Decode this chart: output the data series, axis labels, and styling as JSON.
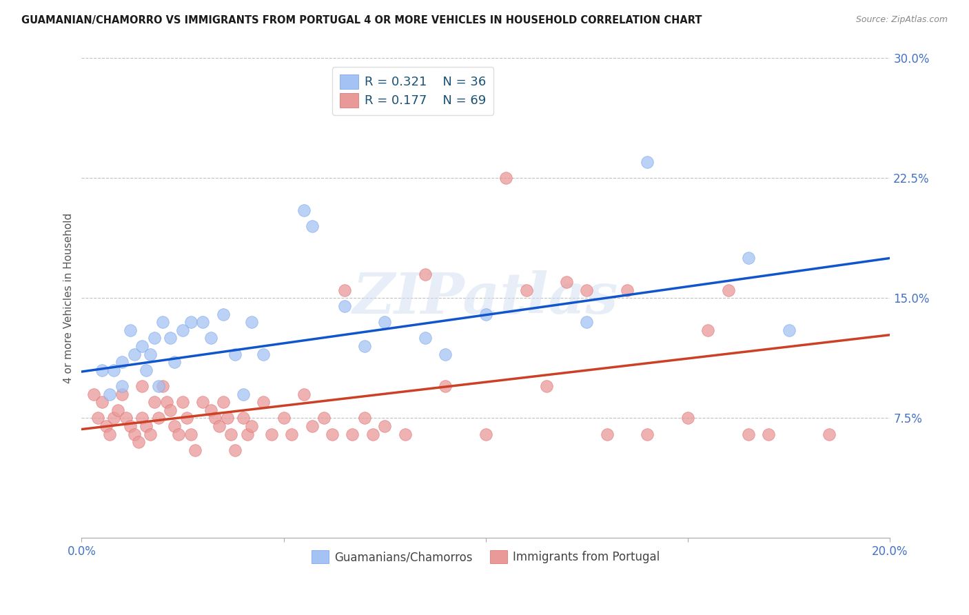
{
  "title": "GUAMANIAN/CHAMORRO VS IMMIGRANTS FROM PORTUGAL 4 OR MORE VEHICLES IN HOUSEHOLD CORRELATION CHART",
  "source": "Source: ZipAtlas.com",
  "ylabel": "4 or more Vehicles in Household",
  "xlim": [
    0.0,
    0.2
  ],
  "ylim": [
    0.0,
    0.3
  ],
  "xticks": [
    0.0,
    0.05,
    0.1,
    0.15,
    0.2
  ],
  "xtick_labels": [
    "0.0%",
    "",
    "",
    "",
    "20.0%"
  ],
  "yticks": [
    0.0,
    0.075,
    0.15,
    0.225,
    0.3
  ],
  "ytick_labels": [
    "",
    "7.5%",
    "15.0%",
    "22.5%",
    "30.0%"
  ],
  "blue_color": "#a4c2f4",
  "pink_color": "#ea9999",
  "blue_edge_color": "#6d9eeb",
  "pink_edge_color": "#e06666",
  "blue_line_color": "#1155cc",
  "pink_line_color": "#cc4125",
  "tick_color": "#4472c4",
  "legend_label1": "Guamanians/Chamorros",
  "legend_label2": "Immigrants from Portugal",
  "watermark": "ZIPatlas",
  "blue_scatter_x": [
    0.005,
    0.007,
    0.008,
    0.01,
    0.01,
    0.012,
    0.013,
    0.015,
    0.016,
    0.017,
    0.018,
    0.019,
    0.02,
    0.022,
    0.023,
    0.025,
    0.027,
    0.03,
    0.032,
    0.035,
    0.038,
    0.04,
    0.042,
    0.045,
    0.055,
    0.057,
    0.065,
    0.07,
    0.075,
    0.085,
    0.09,
    0.1,
    0.125,
    0.14,
    0.165,
    0.175
  ],
  "blue_scatter_y": [
    0.105,
    0.09,
    0.105,
    0.11,
    0.095,
    0.13,
    0.115,
    0.12,
    0.105,
    0.115,
    0.125,
    0.095,
    0.135,
    0.125,
    0.11,
    0.13,
    0.135,
    0.135,
    0.125,
    0.14,
    0.115,
    0.09,
    0.135,
    0.115,
    0.205,
    0.195,
    0.145,
    0.12,
    0.135,
    0.125,
    0.115,
    0.14,
    0.135,
    0.235,
    0.175,
    0.13
  ],
  "pink_scatter_x": [
    0.003,
    0.004,
    0.005,
    0.006,
    0.007,
    0.008,
    0.009,
    0.01,
    0.011,
    0.012,
    0.013,
    0.014,
    0.015,
    0.015,
    0.016,
    0.017,
    0.018,
    0.019,
    0.02,
    0.021,
    0.022,
    0.023,
    0.024,
    0.025,
    0.026,
    0.027,
    0.028,
    0.03,
    0.032,
    0.033,
    0.034,
    0.035,
    0.036,
    0.037,
    0.038,
    0.04,
    0.041,
    0.042,
    0.045,
    0.047,
    0.05,
    0.052,
    0.055,
    0.057,
    0.06,
    0.062,
    0.065,
    0.067,
    0.07,
    0.072,
    0.075,
    0.08,
    0.085,
    0.09,
    0.1,
    0.105,
    0.11,
    0.115,
    0.12,
    0.125,
    0.13,
    0.135,
    0.14,
    0.15,
    0.155,
    0.16,
    0.165,
    0.17,
    0.185
  ],
  "pink_scatter_y": [
    0.09,
    0.075,
    0.085,
    0.07,
    0.065,
    0.075,
    0.08,
    0.09,
    0.075,
    0.07,
    0.065,
    0.06,
    0.095,
    0.075,
    0.07,
    0.065,
    0.085,
    0.075,
    0.095,
    0.085,
    0.08,
    0.07,
    0.065,
    0.085,
    0.075,
    0.065,
    0.055,
    0.085,
    0.08,
    0.075,
    0.07,
    0.085,
    0.075,
    0.065,
    0.055,
    0.075,
    0.065,
    0.07,
    0.085,
    0.065,
    0.075,
    0.065,
    0.09,
    0.07,
    0.075,
    0.065,
    0.155,
    0.065,
    0.075,
    0.065,
    0.07,
    0.065,
    0.165,
    0.095,
    0.065,
    0.225,
    0.155,
    0.095,
    0.16,
    0.155,
    0.065,
    0.155,
    0.065,
    0.075,
    0.13,
    0.155,
    0.065,
    0.065,
    0.065
  ],
  "blue_trend_x0": 0.0,
  "blue_trend_y0": 0.104,
  "blue_trend_x1": 0.2,
  "blue_trend_y1": 0.175,
  "pink_trend_x0": 0.0,
  "pink_trend_y0": 0.068,
  "pink_trend_x1": 0.2,
  "pink_trend_y1": 0.127
}
